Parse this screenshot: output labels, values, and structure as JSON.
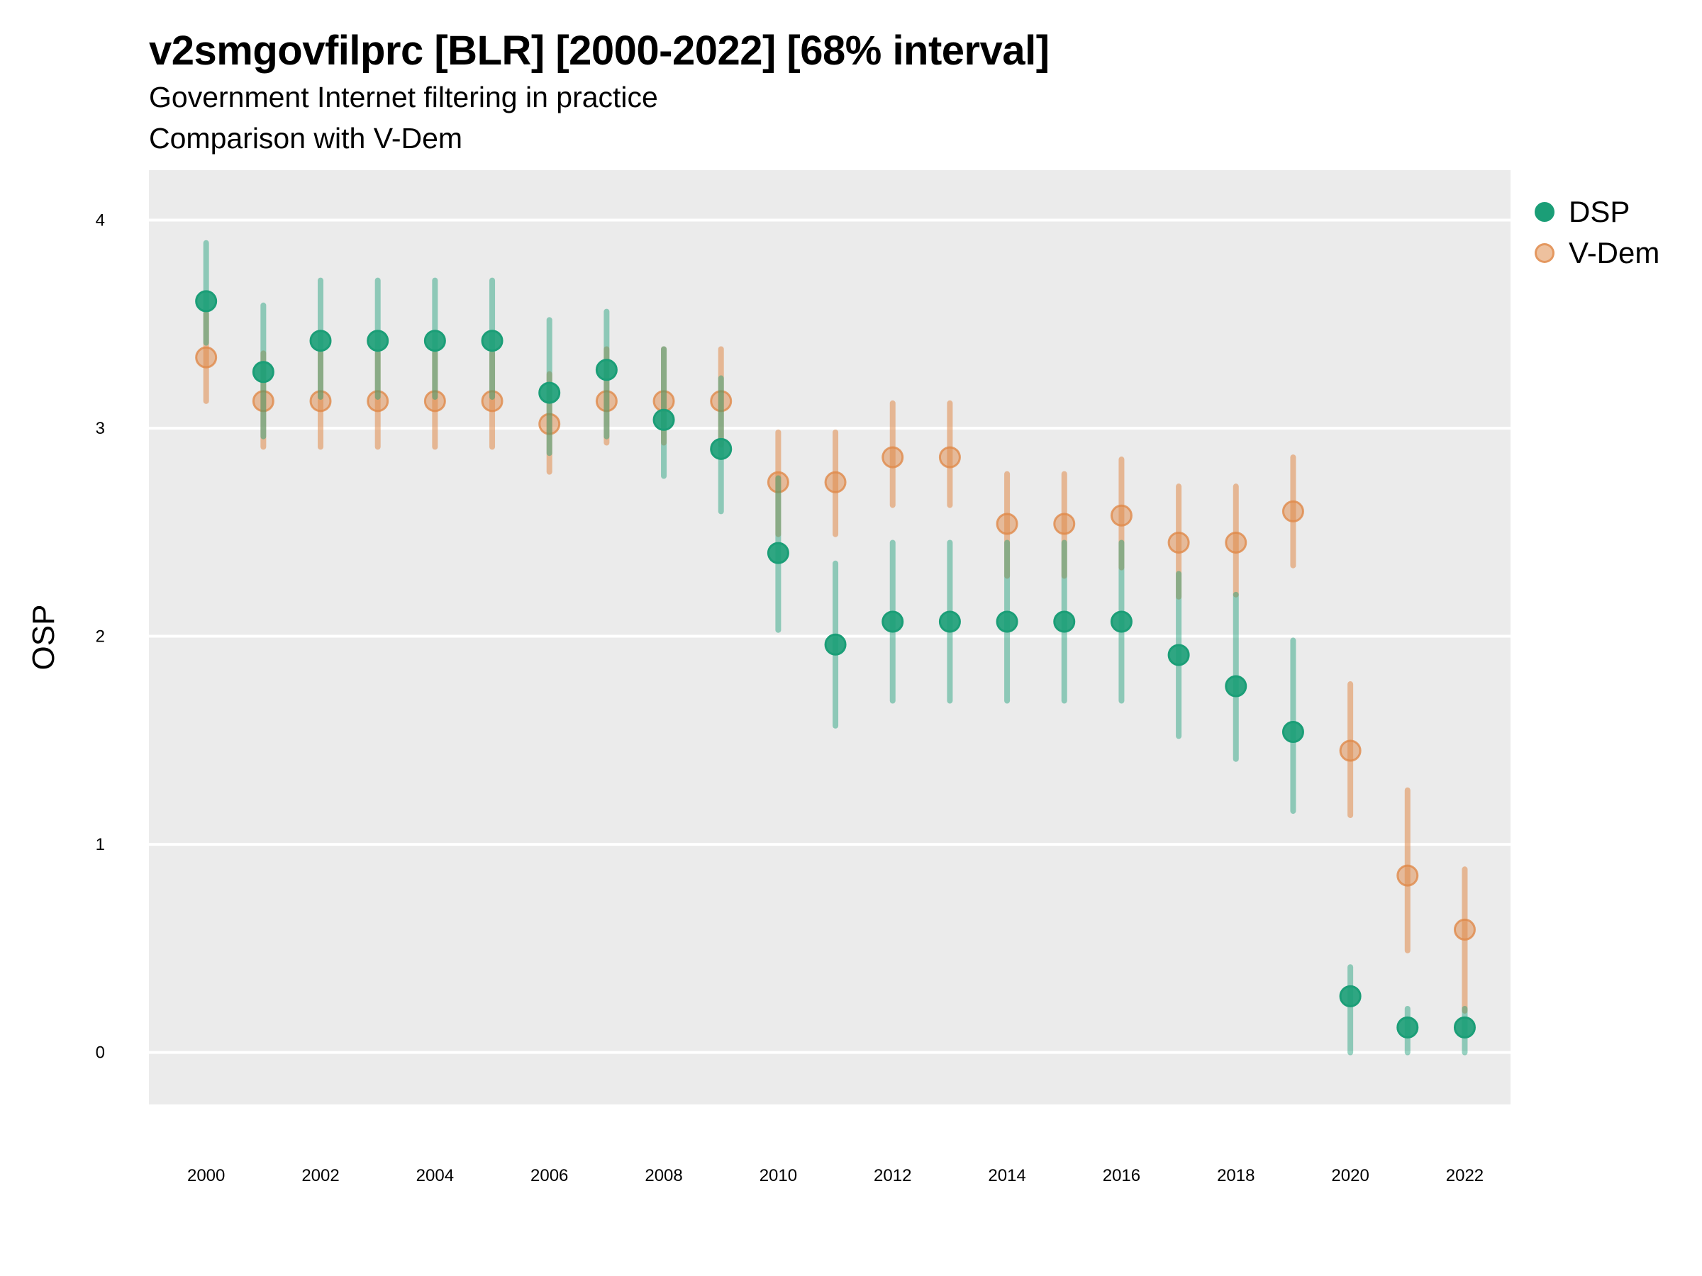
{
  "title": "v2smgovfilprc [BLR] [2000-2022] [68% interval]",
  "subtitle_lines": [
    "Government Internet filtering in practice",
    "Comparison with V-Dem"
  ],
  "colors": {
    "dsp": "#1b9e77",
    "vdem": "#e08a4a",
    "panel": "#ebebeb",
    "grid": "#ffffff"
  },
  "chart_data": {
    "type": "scatter",
    "title": "v2smgovfilprc [BLR] [2000-2022] [68% interval]",
    "subtitle": "Government Internet filtering in practice / Comparison with V-Dem",
    "xlabel": "",
    "ylabel": "OSP",
    "xlim": [
      1999.0,
      2022.8
    ],
    "ylim": [
      -0.25,
      4.24
    ],
    "x_ticks": [
      "2000",
      "2002",
      "2004",
      "2006",
      "2008",
      "2010",
      "2012",
      "2014",
      "2016",
      "2018",
      "2020",
      "2022"
    ],
    "y_ticks": [
      "0",
      "1",
      "2",
      "3",
      "4"
    ],
    "grid": true,
    "legend_position": "right",
    "x": [
      2000,
      2001,
      2002,
      2003,
      2004,
      2005,
      2006,
      2007,
      2008,
      2009,
      2010,
      2011,
      2012,
      2013,
      2014,
      2015,
      2016,
      2017,
      2018,
      2019,
      2020,
      2021,
      2022
    ],
    "series": [
      {
        "name": "DSP",
        "color": "#1b9e77",
        "values": [
          3.61,
          3.27,
          3.42,
          3.42,
          3.42,
          3.42,
          3.17,
          3.28,
          3.04,
          2.9,
          2.4,
          1.96,
          2.07,
          2.07,
          2.07,
          2.07,
          2.07,
          1.91,
          1.76,
          1.54,
          0.27,
          0.12,
          0.12
        ],
        "lower": [
          3.41,
          2.96,
          3.15,
          3.15,
          3.15,
          3.15,
          2.88,
          2.96,
          2.77,
          2.6,
          2.03,
          1.57,
          1.69,
          1.69,
          1.69,
          1.69,
          1.69,
          1.52,
          1.41,
          1.16,
          0.0,
          0.0,
          0.0
        ],
        "upper": [
          3.89,
          3.59,
          3.71,
          3.71,
          3.71,
          3.71,
          3.52,
          3.56,
          3.38,
          3.24,
          2.76,
          2.35,
          2.45,
          2.45,
          2.45,
          2.45,
          2.45,
          2.3,
          2.2,
          1.98,
          0.41,
          0.21,
          0.21
        ]
      },
      {
        "name": "V-Dem",
        "color": "#e08a4a",
        "values": [
          3.34,
          3.13,
          3.13,
          3.13,
          3.13,
          3.13,
          3.02,
          3.13,
          3.13,
          3.13,
          2.74,
          2.74,
          2.86,
          2.86,
          2.54,
          2.54,
          2.58,
          2.45,
          2.45,
          2.6,
          1.45,
          0.85,
          0.59
        ],
        "lower": [
          3.13,
          2.91,
          2.91,
          2.91,
          2.91,
          2.91,
          2.79,
          2.93,
          2.93,
          2.92,
          2.49,
          2.49,
          2.63,
          2.63,
          2.29,
          2.29,
          2.33,
          2.19,
          2.2,
          2.34,
          1.14,
          0.49,
          0.2
        ],
        "upper": [
          3.55,
          3.36,
          3.36,
          3.36,
          3.36,
          3.36,
          3.26,
          3.38,
          3.38,
          3.38,
          2.98,
          2.98,
          3.12,
          3.12,
          2.78,
          2.78,
          2.85,
          2.72,
          2.72,
          2.86,
          1.77,
          1.26,
          0.88
        ]
      }
    ]
  }
}
